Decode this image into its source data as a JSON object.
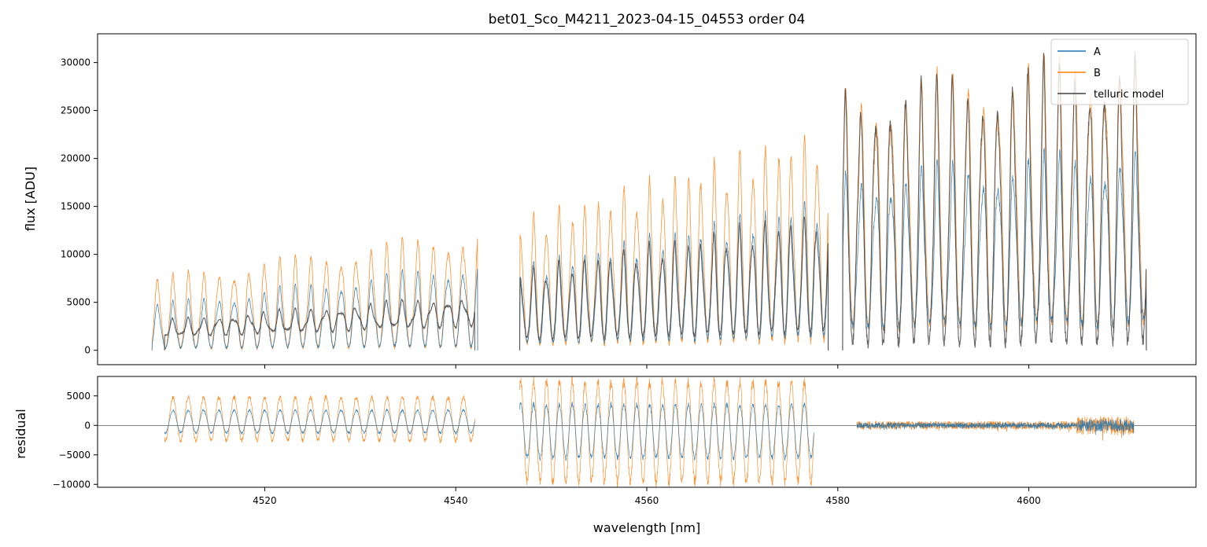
{
  "chart_data": [
    {
      "id": "top",
      "type": "line",
      "title": "bet01_Sco_M4211_2023-04-15_04553  order 04",
      "ylabel": "flux [ADU]",
      "xlabel": "",
      "xlim": [
        4502.5,
        4617.5
      ],
      "ylim": [
        -1500,
        33000
      ],
      "xticks": [
        4520,
        4540,
        4560,
        4580,
        4600
      ],
      "yticks": [
        0,
        5000,
        10000,
        15000,
        20000,
        25000,
        30000
      ],
      "ytick_labels": [
        "0",
        "5000",
        "10000",
        "15000",
        "20000",
        "25000",
        "30000"
      ],
      "legend": {
        "position": "top-right",
        "entries": [
          {
            "label": "A",
            "color": "#1f77b4"
          },
          {
            "label": "B",
            "color": "#ff7f0e"
          },
          {
            "label": "telluric model",
            "color": "#404040"
          }
        ]
      },
      "series": [
        {
          "name": "A",
          "color": "#1f77b4",
          "segments": [
            {
              "x": [
                4508.2,
                4542.3
              ],
              "peak_start": 5000,
              "peak_end": 9500,
              "period": 1.6,
              "depth": 0.95
            },
            {
              "x": [
                4546.7,
                4579.0
              ],
              "peak_start": 9000,
              "peak_end": 16500,
              "period": 1.35,
              "depth": 0.9
            },
            {
              "x": [
                4580.5,
                4612.3
              ],
              "peak_start": 19000,
              "peak_end": 22000,
              "period": 1.6,
              "depth": 0.85
            }
          ]
        },
        {
          "name": "B",
          "color": "#ff7f0e",
          "segments": [
            {
              "x": [
                4508.2,
                4542.3
              ],
              "peak_start": 7800,
              "peak_end": 13000,
              "period": 1.6,
              "depth": 0.97
            },
            {
              "x": [
                4546.7,
                4579.0
              ],
              "peak_start": 14000,
              "peak_end": 24000,
              "period": 1.35,
              "depth": 0.95
            },
            {
              "x": [
                4580.5,
                4612.3
              ],
              "peak_start": 28000,
              "peak_end": 32500,
              "period": 1.6,
              "depth": 0.9
            }
          ]
        },
        {
          "name": "telluric model",
          "color": "#404040",
          "segments": [
            {
              "x": [
                4509.5,
                4542.0
              ],
              "peak_start": 3300,
              "peak_end": 6000,
              "period": 1.6,
              "depth": 0.5
            },
            {
              "x": [
                4546.7,
                4579.0
              ],
              "peak_start": 8600,
              "peak_end": 15000,
              "period": 1.35,
              "depth": 0.85
            },
            {
              "x": [
                4580.5,
                4612.3
              ],
              "peak_start": 28000,
              "peak_end": 32000,
              "period": 1.6,
              "depth": 0.97
            }
          ]
        }
      ]
    },
    {
      "id": "bottom",
      "type": "line",
      "title": "",
      "ylabel": "residual",
      "xlabel": "wavelength [nm]",
      "xlim": [
        4502.5,
        4617.5
      ],
      "ylim": [
        -10500,
        8300
      ],
      "xticks": [
        4520,
        4540,
        4560,
        4580,
        4600
      ],
      "xtick_labels": [
        "4520",
        "4540",
        "4560",
        "4580",
        "4600"
      ],
      "yticks": [
        -10000,
        -5000,
        0,
        5000
      ],
      "ytick_labels": [
        "−10000",
        "−5000",
        "0",
        "5000"
      ],
      "zero_line": 0,
      "series": [
        {
          "name": "A residual",
          "color": "#1f77b4",
          "segments": [
            {
              "x": [
                4509.5,
                4542.0
              ],
              "low": -1500,
              "high": 2800,
              "period": 1.6
            },
            {
              "x": [
                4546.7,
                4577.5
              ],
              "low": -6000,
              "high": 4000,
              "period": 1.35
            },
            {
              "x": [
                4582.0,
                4611.0
              ],
              "low": -800,
              "high": 800,
              "period": 0.25
            }
          ]
        },
        {
          "name": "B residual",
          "color": "#ff7f0e",
          "segments": [
            {
              "x": [
                4509.5,
                4542.0
              ],
              "low": -3000,
              "high": 5200,
              "period": 1.6
            },
            {
              "x": [
                4546.7,
                4577.5
              ],
              "low": -10500,
              "high": 8300,
              "period": 1.35
            },
            {
              "x": [
                4582.0,
                4611.0
              ],
              "low": -1200,
              "high": 1200,
              "period": 0.25
            }
          ]
        }
      ]
    }
  ]
}
